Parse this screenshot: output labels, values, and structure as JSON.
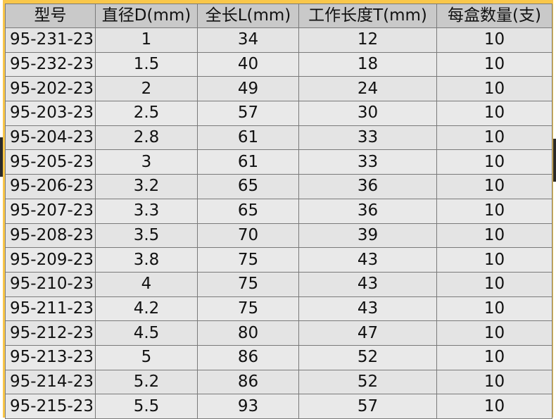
{
  "table": {
    "headers": [
      "型号",
      "直径D(mm)",
      "全长L(mm)",
      "工作长度T(mm)",
      "每盒数量(支)"
    ],
    "rows": [
      [
        "95-231-23",
        "1",
        "34",
        "12",
        "10"
      ],
      [
        "95-232-23",
        "1.5",
        "40",
        "18",
        "10"
      ],
      [
        "95-202-23",
        "2",
        "49",
        "24",
        "10"
      ],
      [
        "95-203-23",
        "2.5",
        "57",
        "30",
        "10"
      ],
      [
        "95-204-23",
        "2.8",
        "61",
        "33",
        "10"
      ],
      [
        "95-205-23",
        "3",
        "61",
        "33",
        "10"
      ],
      [
        "95-206-23",
        "3.2",
        "65",
        "36",
        "10"
      ],
      [
        "95-207-23",
        "3.3",
        "65",
        "36",
        "10"
      ],
      [
        "95-208-23",
        "3.5",
        "70",
        "39",
        "10"
      ],
      [
        "95-209-23",
        "3.8",
        "75",
        "43",
        "10"
      ],
      [
        "95-210-23",
        "4",
        "75",
        "43",
        "10"
      ],
      [
        "95-211-23",
        "4.2",
        "75",
        "43",
        "10"
      ],
      [
        "95-212-23",
        "4.5",
        "80",
        "47",
        "10"
      ],
      [
        "95-213-23",
        "5",
        "86",
        "52",
        "10"
      ],
      [
        "95-214-23",
        "5.2",
        "86",
        "52",
        "10"
      ],
      [
        "95-215-23",
        "5.5",
        "93",
        "57",
        "10"
      ]
    ]
  },
  "colors": {
    "frame": "#f9c74a",
    "header_bg": "#c9c9c9",
    "row_bg": "#e6e6e6",
    "border": "#7a7a7a"
  }
}
